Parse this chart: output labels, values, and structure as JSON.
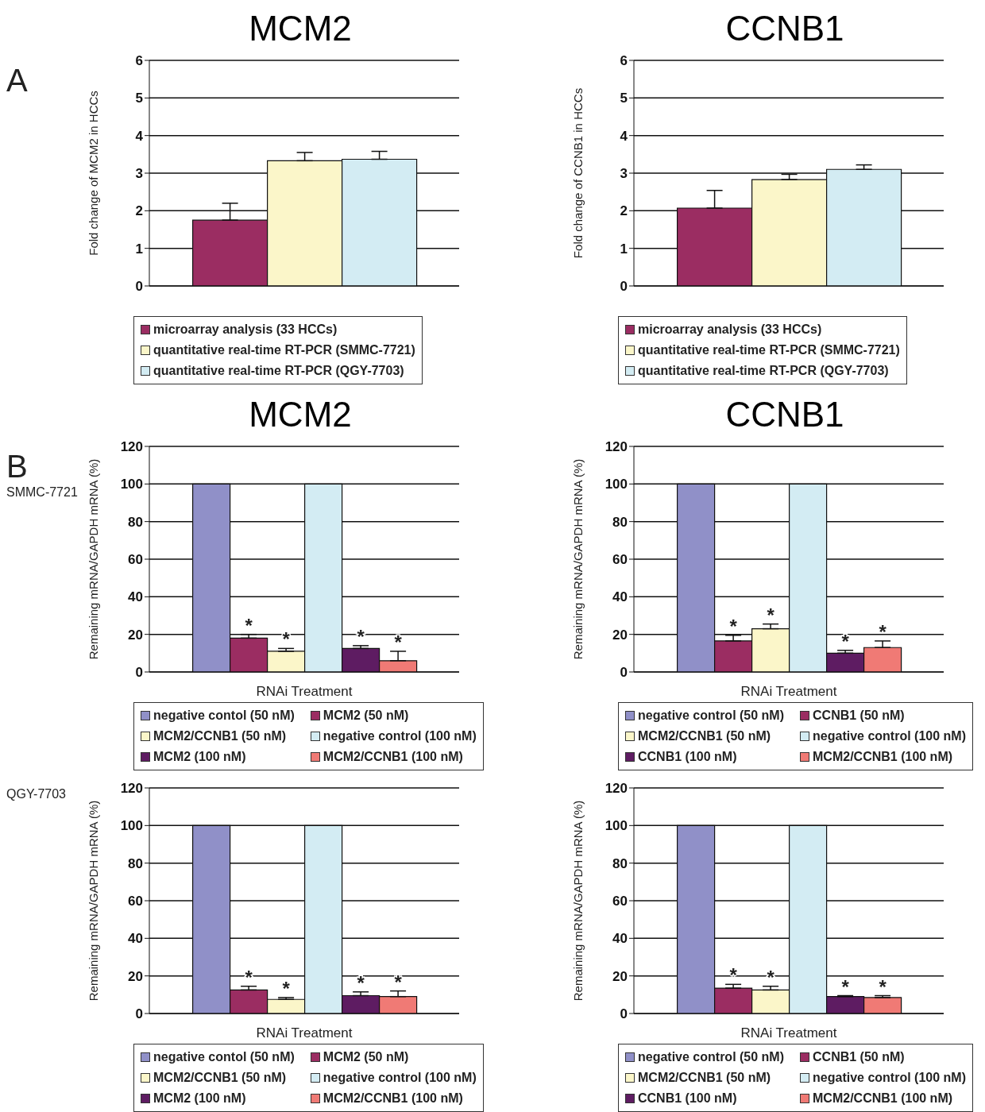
{
  "chart_data": [
    {
      "type": "bar",
      "title": "MCM2",
      "ylabel": "Fold change of MCM2 in HCCs",
      "categories": [
        null
      ],
      "ylim": [
        0,
        6
      ],
      "yticks": [
        0,
        1,
        2,
        3,
        4,
        5,
        6
      ],
      "grid": "y",
      "legend": "bottom",
      "annotations": [
        "A"
      ],
      "series": [
        {
          "name": "microarray analysis (33 HCCs)",
          "color": "#9b2d62",
          "values": [
            1.75
          ],
          "errors": [
            [
              1.75,
              2.2
            ]
          ]
        },
        {
          "name": "quantitative real-time RT-PCR (SMMC-7721)",
          "color": "#fbf6c9",
          "values": [
            3.33
          ],
          "errors": [
            [
              3.33,
              3.55
            ]
          ]
        },
        {
          "name": "quantitative real-time RT-PCR (QGY-7703)",
          "color": "#d3ecf3",
          "values": [
            3.37
          ],
          "errors": [
            [
              3.37,
              3.58
            ]
          ]
        }
      ]
    },
    {
      "type": "bar",
      "title": "CCNB1",
      "ylabel": "Fold change of CCNB1 in HCCs",
      "categories": [
        null
      ],
      "ylim": [
        0,
        6
      ],
      "yticks": [
        0,
        1,
        2,
        3,
        4,
        5,
        6
      ],
      "grid": "y",
      "legend": "bottom",
      "series": [
        {
          "name": "microarray analysis (33 HCCs)",
          "color": "#9b2d62",
          "values": [
            2.07
          ],
          "errors": [
            [
              2.07,
              2.54
            ]
          ]
        },
        {
          "name": "quantitative real-time RT-PCR (SMMC-7721)",
          "color": "#fbf6c9",
          "values": [
            2.83
          ],
          "errors": [
            [
              2.83,
              2.97
            ]
          ]
        },
        {
          "name": "quantitative real-time RT-PCR (QGY-7703)",
          "color": "#d3ecf3",
          "values": [
            3.1
          ],
          "errors": [
            [
              3.1,
              3.22
            ]
          ]
        }
      ]
    },
    {
      "type": "bar",
      "title": "MCM2",
      "xlabel": "RNAi Treatment",
      "ylabel": "Remaining mRNA/GAPDH mRNA (%)",
      "categories": [
        null
      ],
      "ylim": [
        0,
        120
      ],
      "yticks": [
        0,
        20,
        40,
        60,
        80,
        100,
        120
      ],
      "grid": "y",
      "legend": "bottom",
      "annotations": [
        "B",
        "SMMC-7721",
        "*",
        "*",
        "*",
        "*"
      ],
      "series": [
        {
          "name": "negative contol (50 nM)",
          "color": "#9090c8",
          "values": [
            100
          ]
        },
        {
          "name": "MCM2 (50 nM)",
          "color": "#9b2d62",
          "values": [
            18
          ],
          "errors": [
            [
              18,
              20
            ]
          ]
        },
        {
          "name": "MCM2/CCNB1 (50 nM)",
          "color": "#fbf6c9",
          "values": [
            11
          ],
          "errors": [
            [
              11,
              12.5
            ]
          ]
        },
        {
          "name": "negative control (100 nM)",
          "color": "#d3ecf3",
          "values": [
            100
          ]
        },
        {
          "name": "MCM2 (100 nM)",
          "color": "#5e1c62",
          "values": [
            12.5
          ],
          "errors": [
            [
              12.5,
              14
            ]
          ]
        },
        {
          "name": "MCM2/CCNB1 (100 nM)",
          "color": "#f07a75",
          "values": [
            6
          ],
          "errors": [
            [
              6,
              11
            ]
          ]
        }
      ]
    },
    {
      "type": "bar",
      "title": "CCNB1",
      "xlabel": "RNAi Treatment",
      "ylabel": "Remaining mRNA/GAPDH mRNA (%)",
      "categories": [
        null
      ],
      "ylim": [
        0,
        120
      ],
      "yticks": [
        0,
        20,
        40,
        60,
        80,
        100,
        120
      ],
      "grid": "y",
      "legend": "bottom",
      "annotations": [
        "*",
        "*",
        "*",
        "*"
      ],
      "series": [
        {
          "name": "negative control (50 nM)",
          "color": "#9090c8",
          "values": [
            100
          ]
        },
        {
          "name": "CCNB1 (50 nM)",
          "color": "#9b2d62",
          "values": [
            16.5
          ],
          "errors": [
            [
              16.5,
              19.5
            ]
          ]
        },
        {
          "name": "MCM2/CCNB1 (50 nM)",
          "color": "#fbf6c9",
          "values": [
            23
          ],
          "errors": [
            [
              23,
              25.5
            ]
          ]
        },
        {
          "name": "negative control (100 nM)",
          "color": "#d3ecf3",
          "values": [
            100
          ]
        },
        {
          "name": "CCNB1 (100 nM)",
          "color": "#5e1c62",
          "values": [
            10
          ],
          "errors": [
            [
              10,
              11.5
            ]
          ]
        },
        {
          "name": "MCM2/CCNB1 (100 nM)",
          "color": "#f07a75",
          "values": [
            13
          ],
          "errors": [
            [
              13,
              16.5
            ]
          ]
        }
      ]
    },
    {
      "type": "bar",
      "xlabel": "RNAi Treatment",
      "ylabel": "Remaining mRNA/GAPDH mRNA (%)",
      "categories": [
        null
      ],
      "ylim": [
        0,
        120
      ],
      "yticks": [
        0,
        20,
        40,
        60,
        80,
        100,
        120
      ],
      "grid": "y",
      "legend": "bottom",
      "annotations": [
        "QGY-7703",
        "*",
        "*",
        "*",
        "*"
      ],
      "series": [
        {
          "name": "negative contol (50 nM)",
          "color": "#9090c8",
          "values": [
            100
          ]
        },
        {
          "name": "MCM2 (50 nM)",
          "color": "#9b2d62",
          "values": [
            12.5
          ],
          "errors": [
            [
              12.5,
              14.5
            ]
          ]
        },
        {
          "name": "MCM2/CCNB1 (50 nM)",
          "color": "#fbf6c9",
          "values": [
            7.5
          ],
          "errors": [
            [
              7.5,
              8.5
            ]
          ]
        },
        {
          "name": "negative control (100 nM)",
          "color": "#d3ecf3",
          "values": [
            100
          ]
        },
        {
          "name": "MCM2 (100 nM)",
          "color": "#5e1c62",
          "values": [
            9.5
          ],
          "errors": [
            [
              9.5,
              11.5
            ]
          ]
        },
        {
          "name": "MCM2/CCNB1 (100 nM)",
          "color": "#f07a75",
          "values": [
            9
          ],
          "errors": [
            [
              9,
              12
            ]
          ]
        }
      ]
    },
    {
      "type": "bar",
      "xlabel": "RNAi Treatment",
      "ylabel": "Remaining mRNA/GAPDH mRNA (%)",
      "categories": [
        null
      ],
      "ylim": [
        0,
        120
      ],
      "yticks": [
        0,
        20,
        40,
        60,
        80,
        100,
        120
      ],
      "grid": "y",
      "legend": "bottom",
      "annotations": [
        "*",
        "*",
        "*",
        "*"
      ],
      "series": [
        {
          "name": "negative control (50 nM)",
          "color": "#9090c8",
          "values": [
            100
          ]
        },
        {
          "name": "CCNB1 (50 nM)",
          "color": "#9b2d62",
          "values": [
            13.5
          ],
          "errors": [
            [
              13.5,
              15.5
            ]
          ]
        },
        {
          "name": "MCM2/CCNB1 (50 nM)",
          "color": "#fbf6c9",
          "values": [
            12.5
          ],
          "errors": [
            [
              12.5,
              14.5
            ]
          ]
        },
        {
          "name": "negative control (100 nM)",
          "color": "#d3ecf3",
          "values": [
            100
          ]
        },
        {
          "name": "CCNB1 (100 nM)",
          "color": "#5e1c62",
          "values": [
            9
          ],
          "errors": [
            [
              9,
              9.5
            ]
          ]
        },
        {
          "name": "MCM2/CCNB1 (100 nM)",
          "color": "#f07a75",
          "values": [
            8.5
          ],
          "errors": [
            [
              8.5,
              9.5
            ]
          ]
        }
      ]
    }
  ]
}
